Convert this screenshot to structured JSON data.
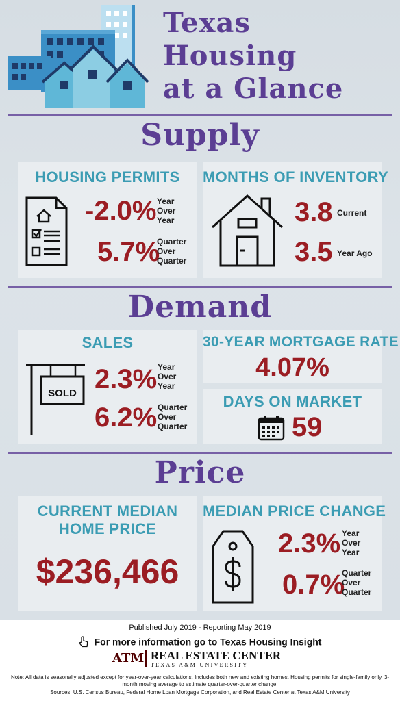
{
  "header": {
    "title_lines": [
      "Texas",
      "Housing",
      "at a Glance"
    ]
  },
  "sections": {
    "supply": "Supply",
    "demand": "Demand",
    "price": "Price"
  },
  "housing_permits": {
    "title": "HOUSING PERMITS",
    "yoy_value": "-2.0%",
    "yoy_label": [
      "Year",
      "Over",
      "Year"
    ],
    "qoq_value": "5.7%",
    "qoq_label": [
      "Quarter",
      "Over",
      "Quarter"
    ]
  },
  "months_inventory": {
    "title": "MONTHS OF INVENTORY",
    "current_value": "3.8",
    "current_label": "Current",
    "ago_value": "3.5",
    "ago_label": "Year Ago"
  },
  "sales": {
    "title": "SALES",
    "sign_text": "SOLD",
    "yoy_value": "2.3%",
    "yoy_label": [
      "Year",
      "Over",
      "Year"
    ],
    "qoq_value": "6.2%",
    "qoq_label": [
      "Quarter",
      "Over",
      "Quarter"
    ]
  },
  "mortgage": {
    "title": "30-YEAR MORTGAGE RATE",
    "value": "4.07%"
  },
  "days_on_market": {
    "title": "DAYS ON MARKET",
    "value": "59"
  },
  "median_price": {
    "title_lines": [
      "CURRENT MEDIAN",
      "HOME PRICE"
    ],
    "value": "$236,466"
  },
  "price_change": {
    "title": "MEDIAN PRICE CHANGE",
    "yoy_value": "2.3%",
    "yoy_label": [
      "Year",
      "Over",
      "Year"
    ],
    "qoq_value": "0.7%",
    "qoq_label": [
      "Quarter",
      "Over",
      "Quarter"
    ]
  },
  "footer": {
    "published": "Published July 2019 - Reporting May 2019",
    "more_info": "For more information go to Texas Housing Insight",
    "logo_mark": "ATM",
    "org_name": "REAL ESTATE CENTER",
    "org_sub": "TEXAS A&M UNIVERSITY",
    "note": "Note: All data is seasonally adjusted except for year-over-year calculations. Includes both new and existing homes. Housing permits for single-family only. 3-month moving average to estimate quarter-over-quarter change.",
    "sources": "Sources: U.S. Census Bureau, Federal Home Loan Mortgage Corporation, and Real Estate Center at Texas A&M University"
  },
  "colors": {
    "purple": "#5b3e93",
    "teal": "#3b9cb3",
    "maroon": "#9b1d23",
    "navy": "#1f3a68"
  },
  "icons": [
    "buildings-illustration",
    "permit-document-icon",
    "house-outline-icon",
    "sold-sign-icon",
    "calendar-icon",
    "price-tag-icon",
    "pointer-hand-icon"
  ]
}
